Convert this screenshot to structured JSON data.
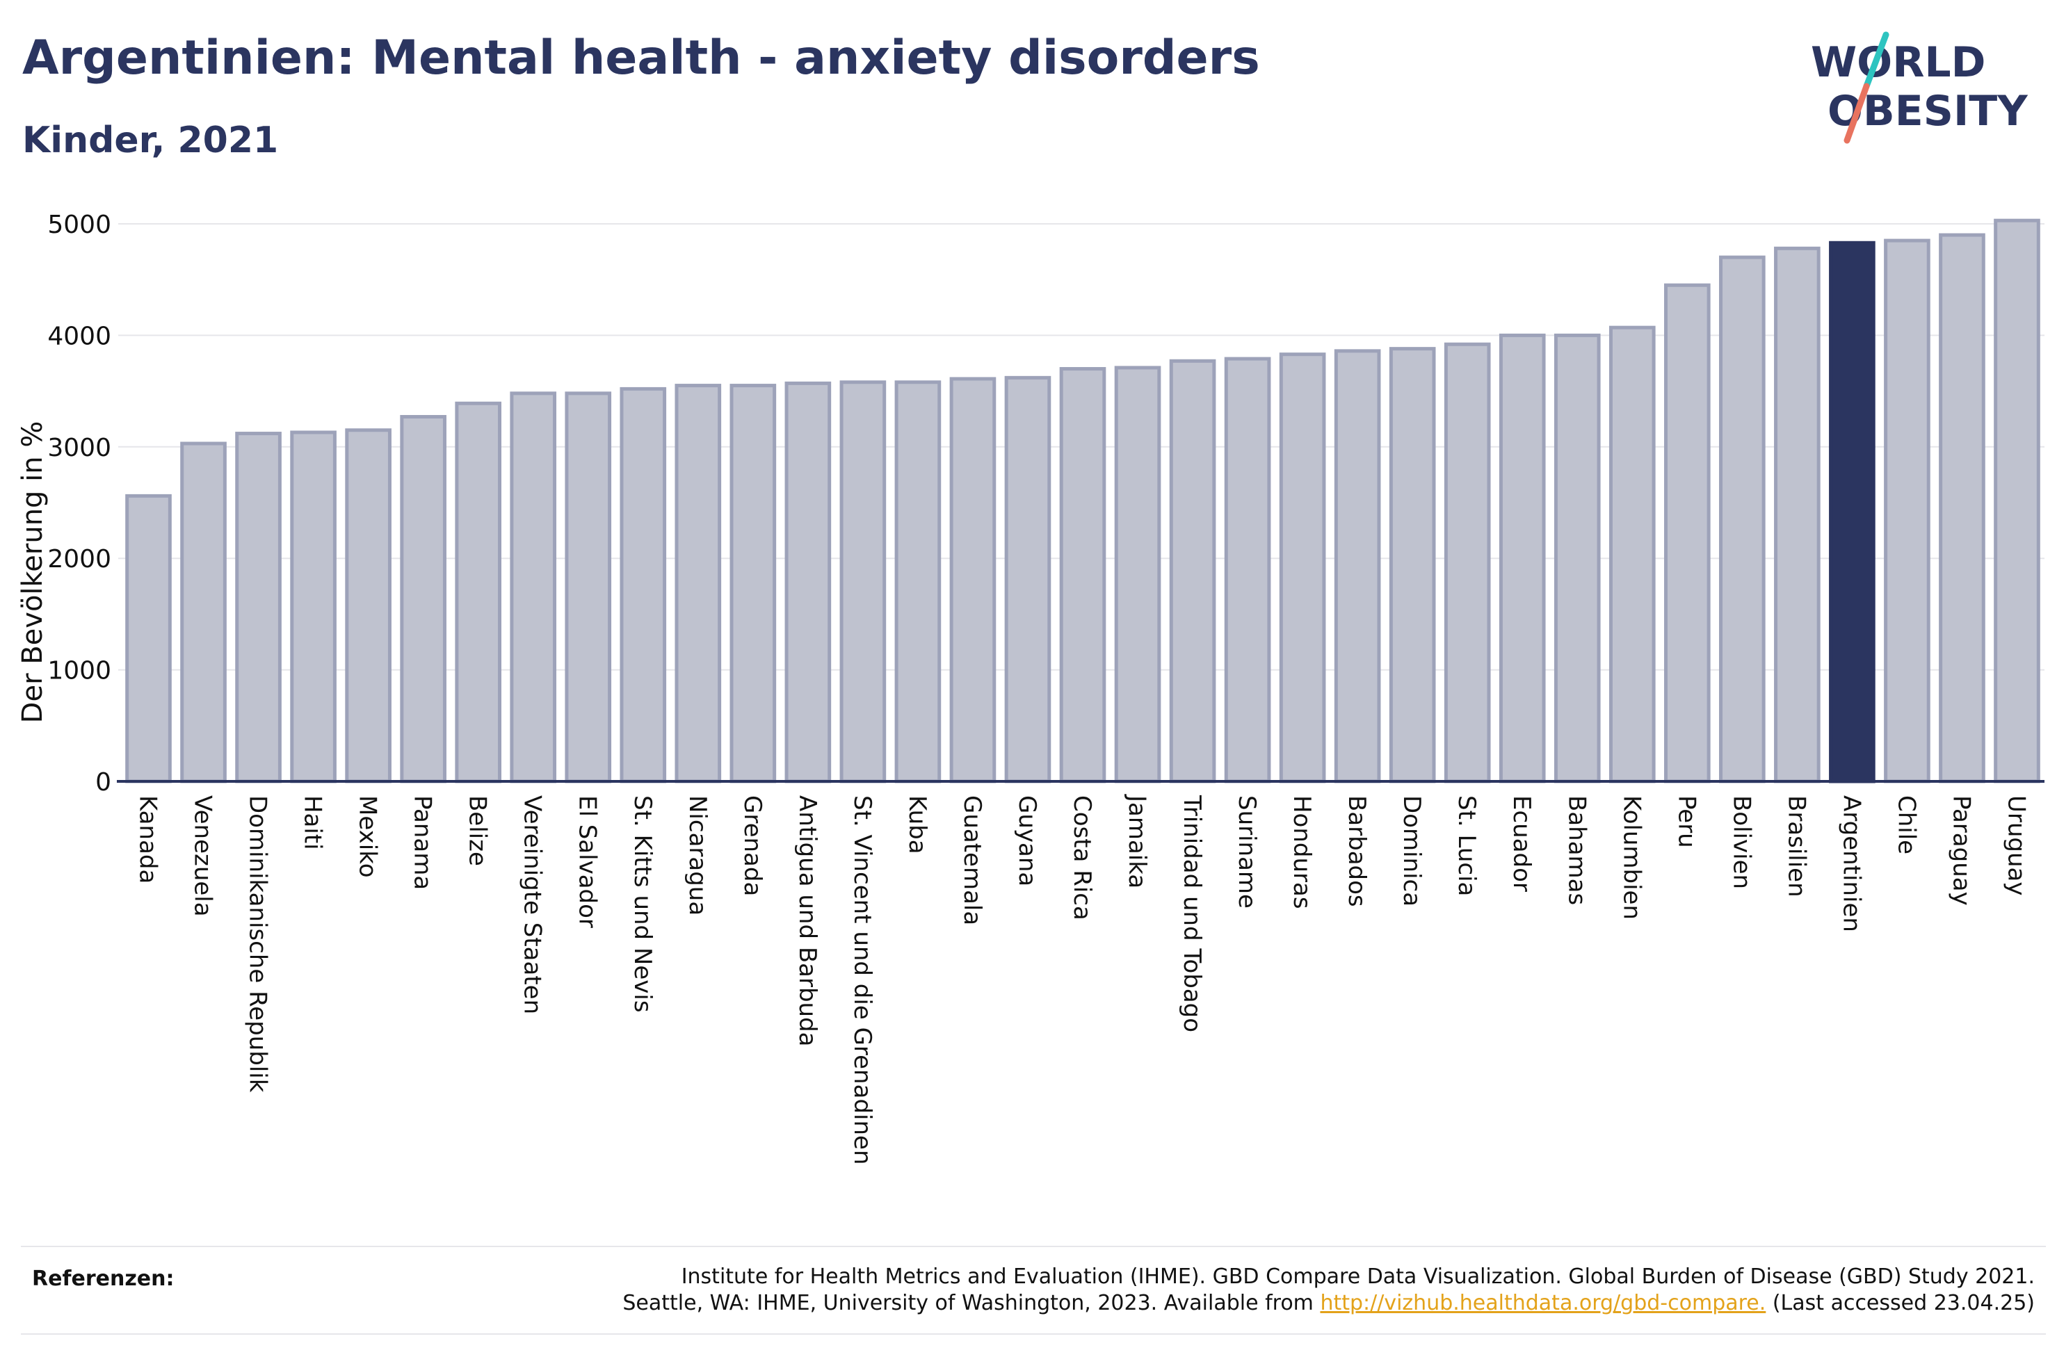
{
  "header": {
    "title": "Argentinien: Mental health - anxiety disorders",
    "subtitle": "Kinder, 2021"
  },
  "logo": {
    "line1": "WORLD",
    "line2": "OBESITY",
    "slash_colors": [
      "#2ec4c0",
      "#e8735f"
    ],
    "text_color": "#2b3560"
  },
  "colors": {
    "bar_default": "#bfc2cf",
    "bar_default_border": "#9da2b9",
    "bar_highlight": "#2b3560",
    "gridline": "#e6e6ea",
    "axis": "#2b3560"
  },
  "chart_data": {
    "type": "bar",
    "ylabel": "Der Bevölkerung in %",
    "ylim": [
      0,
      5000
    ],
    "yticks": [
      0,
      1000,
      2000,
      3000,
      4000,
      5000
    ],
    "grid": true,
    "highlight": "Argentinien",
    "categories": [
      "Kanada",
      "Venezuela",
      "Dominikanische Republik",
      "Haiti",
      "Mexiko",
      "Panama",
      "Belize",
      "Vereinigte Staaten",
      "El Salvador",
      "St. Kitts und Nevis",
      "Nicaragua",
      "Grenada",
      "Antigua und Barbuda",
      "St. Vincent und die Grenadinen",
      "Kuba",
      "Guatemala",
      "Guyana",
      "Costa Rica",
      "Jamaika",
      "Trinidad und Tobago",
      "Suriname",
      "Honduras",
      "Barbados",
      "Dominica",
      "St. Lucia",
      "Ecuador",
      "Bahamas",
      "Kolumbien",
      "Peru",
      "Bolivien",
      "Brasilien",
      "Argentinien",
      "Chile",
      "Paraguay",
      "Uruguay"
    ],
    "values": [
      2560,
      3030,
      3120,
      3130,
      3150,
      3270,
      3390,
      3480,
      3480,
      3520,
      3550,
      3550,
      3570,
      3580,
      3580,
      3610,
      3620,
      3700,
      3710,
      3770,
      3790,
      3830,
      3860,
      3880,
      3920,
      4000,
      4000,
      4070,
      4450,
      4700,
      4780,
      4830,
      4850,
      4900,
      5030
    ]
  },
  "references": {
    "label": "Referenzen:",
    "line1": "Institute for Health Metrics and Evaluation (IHME). GBD Compare Data Visualization. Global Burden of Disease (GBD) Study 2021.",
    "line2_prefix": "Seattle, WA: IHME, University of Washington, 2023. Available from ",
    "link": "http://vizhub.healthdata.org/gbd-compare.",
    "line2_suffix": " (Last accessed 23.04.25)"
  }
}
